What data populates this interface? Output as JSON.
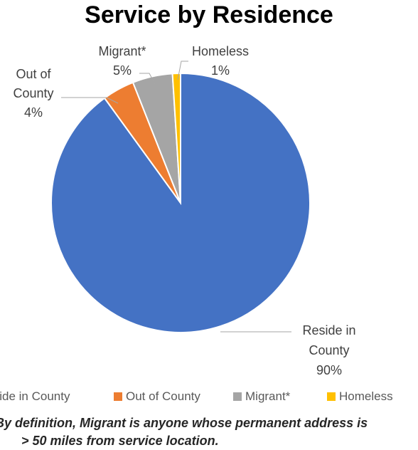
{
  "chart_data": {
    "type": "pie",
    "title": "Service by Residence",
    "slices": [
      {
        "name": "Reside in County",
        "value": 90,
        "label_lines": [
          "Reside in",
          "County",
          "90%"
        ],
        "color": "#4472c4"
      },
      {
        "name": "Out of County",
        "value": 4,
        "label_lines": [
          "Out of",
          "County",
          "4%"
        ],
        "color": "#ed7d31"
      },
      {
        "name": "Migrant*",
        "value": 5,
        "label_lines": [
          "Migrant*",
          "5%"
        ],
        "color": "#a5a5a5"
      },
      {
        "name": "Homeless",
        "value": 1,
        "label_lines": [
          "Homeless",
          "1%"
        ],
        "color": "#ffc000"
      }
    ],
    "legend_position": "bottom",
    "legend": [
      "Reside in County",
      "Out of County",
      "Migrant*",
      "Homeless"
    ]
  },
  "footnote": {
    "line1": "*By definition, Migrant is anyone whose permanent address is",
    "line2": "> 50 miles from service location."
  }
}
